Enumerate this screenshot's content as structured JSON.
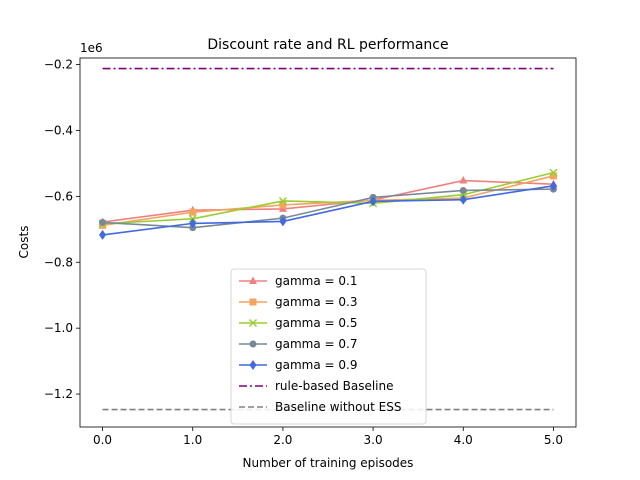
{
  "chart_data": {
    "type": "line",
    "title": "Discount rate and RL performance",
    "xlabel": "Number of training episodes",
    "ylabel": "Costs",
    "offset_text": "1e6",
    "x": [
      0.0,
      1.0,
      2.0,
      3.0,
      4.0,
      5.0
    ],
    "xlim": [
      -0.25,
      5.25
    ],
    "ylim": [
      -1.3,
      -0.18
    ],
    "xticks": [
      0.0,
      1.0,
      2.0,
      3.0,
      4.0,
      5.0
    ],
    "xtick_labels": [
      "0.0",
      "1.0",
      "2.0",
      "3.0",
      "4.0",
      "5.0"
    ],
    "yticks": [
      -1.2,
      -1.0,
      -0.8,
      -0.6,
      -0.4,
      -0.2
    ],
    "ytick_labels": [
      "−1.2",
      "−1.0",
      "−0.8",
      "−0.6",
      "−0.4",
      "−0.2"
    ],
    "grid": false,
    "legend_position": "lower center",
    "series": [
      {
        "name": "gamma = 0.1",
        "color": "#f08080",
        "marker": "triangle",
        "values": [
          -0.678,
          -0.642,
          -0.638,
          -0.611,
          -0.552,
          -0.563
        ]
      },
      {
        "name": "gamma = 0.3",
        "color": "#f4a460",
        "marker": "square",
        "values": [
          -0.688,
          -0.648,
          -0.626,
          -0.612,
          -0.605,
          -0.538
        ]
      },
      {
        "name": "gamma = 0.5",
        "color": "#9acd32",
        "marker": "x",
        "values": [
          -0.683,
          -0.668,
          -0.614,
          -0.621,
          -0.595,
          -0.528
        ]
      },
      {
        "name": "gamma = 0.7",
        "color": "#778899",
        "marker": "circle",
        "values": [
          -0.679,
          -0.695,
          -0.666,
          -0.603,
          -0.582,
          -0.578
        ]
      },
      {
        "name": "gamma = 0.9",
        "color": "#4169e1",
        "marker": "diamond",
        "values": [
          -0.717,
          -0.682,
          -0.676,
          -0.615,
          -0.61,
          -0.568
        ]
      }
    ],
    "baselines": [
      {
        "name": "rule-based Baseline",
        "color": "#800080",
        "dash": "dashdot",
        "value": -0.212
      },
      {
        "name": "Baseline without ESS",
        "color": "#808080",
        "dash": "dashed",
        "value": -1.247
      }
    ]
  }
}
